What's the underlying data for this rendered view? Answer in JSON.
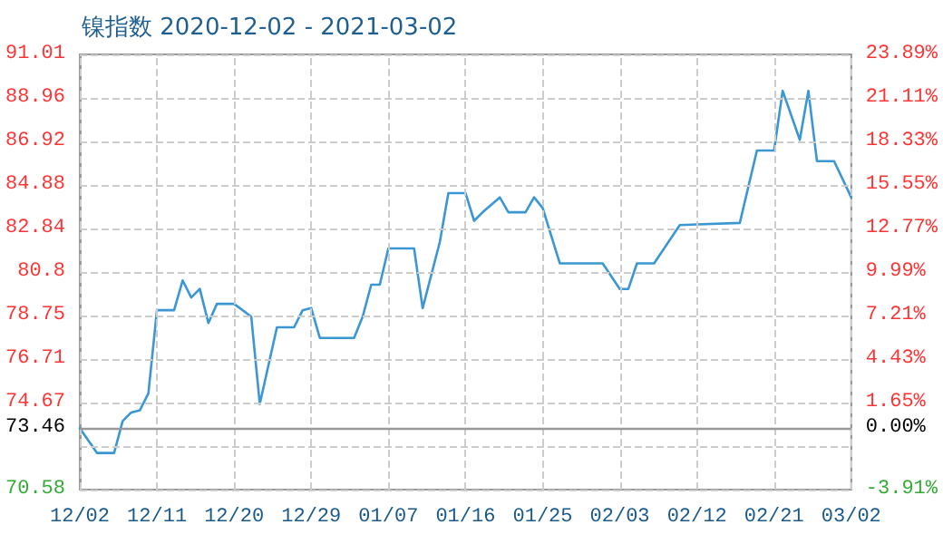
{
  "chart_data": {
    "type": "line",
    "title": "镍指数 2020-12-02 - 2021-03-02",
    "x": [
      "2020-12-02",
      "2020-12-04",
      "2020-12-06",
      "2020-12-07",
      "2020-12-08",
      "2020-12-09",
      "2020-12-10",
      "2020-12-11",
      "2020-12-13",
      "2020-12-14",
      "2020-12-15",
      "2020-12-16",
      "2020-12-17",
      "2020-12-18",
      "2020-12-20",
      "2020-12-22",
      "2020-12-23",
      "2020-12-25",
      "2020-12-27",
      "2020-12-28",
      "2020-12-29",
      "2020-12-30",
      "2021-01-03",
      "2021-01-04",
      "2021-01-05",
      "2021-01-06",
      "2021-01-07",
      "2021-01-10",
      "2021-01-11",
      "2021-01-13",
      "2021-01-14",
      "2021-01-16",
      "2021-01-17",
      "2021-01-18",
      "2021-01-20",
      "2021-01-21",
      "2021-01-23",
      "2021-01-24",
      "2021-01-25",
      "2021-01-27",
      "2021-02-01",
      "2021-02-03",
      "2021-02-04",
      "2021-02-05",
      "2021-02-07",
      "2021-02-10",
      "2021-02-17",
      "2021-02-19",
      "2021-02-21",
      "2021-02-22",
      "2021-02-24",
      "2021-02-25",
      "2021-02-26",
      "2021-02-28",
      "2021-03-02"
    ],
    "series": [
      {
        "color": "#3a97d4",
        "values": [
          73.46,
          72.3,
          72.3,
          73.8,
          74.2,
          74.3,
          75.1,
          79.0,
          79.0,
          80.4,
          79.6,
          80.0,
          78.4,
          79.3,
          79.3,
          78.7,
          74.6,
          78.2,
          78.2,
          79.0,
          79.1,
          77.7,
          77.7,
          78.7,
          80.2,
          80.2,
          81.9,
          81.9,
          79.1,
          82.2,
          84.5,
          84.5,
          83.2,
          83.6,
          84.3,
          83.6,
          83.6,
          84.3,
          83.8,
          81.2,
          81.2,
          80.0,
          80.0,
          81.2,
          81.2,
          83.0,
          83.1,
          86.5,
          86.5,
          89.3,
          87.0,
          89.3,
          86.0,
          86.0,
          84.3
        ]
      }
    ],
    "xlim": [
      "2020-12-02",
      "2021-03-02"
    ],
    "xticks": [
      {
        "value": "2020-12-02",
        "label": "12/02"
      },
      {
        "value": "2020-12-11",
        "label": "12/11"
      },
      {
        "value": "2020-12-20",
        "label": "12/20"
      },
      {
        "value": "2020-12-29",
        "label": "12/29"
      },
      {
        "value": "2021-01-07",
        "label": "01/07"
      },
      {
        "value": "2021-01-16",
        "label": "01/16"
      },
      {
        "value": "2021-01-25",
        "label": "01/25"
      },
      {
        "value": "2021-02-03",
        "label": "02/03"
      },
      {
        "value": "2021-02-12",
        "label": "02/12"
      },
      {
        "value": "2021-02-21",
        "label": "02/21"
      },
      {
        "value": "2021-03-02",
        "label": "03/02"
      }
    ],
    "ylim": [
      70.58,
      91.01
    ],
    "yticks": [
      70.58,
      {
        "value": 72.62,
        "label": null
      },
      73.46,
      74.67,
      76.71,
      78.75,
      {
        "value": 80.8,
        "label": "80.8"
      },
      82.84,
      84.88,
      86.92,
      88.96,
      91.01
    ],
    "y2lim": [
      -3.91,
      23.89
    ],
    "y2ticks": [
      {
        "value": -3.91,
        "label": "-3.91%"
      },
      {
        "value": 0,
        "label": "0.00%"
      },
      {
        "value": 1.65,
        "label": "1.65%"
      },
      {
        "value": 4.43,
        "label": "4.43%"
      },
      {
        "value": 7.21,
        "label": "7.21%"
      },
      {
        "value": 9.99,
        "label": "9.99%"
      },
      {
        "value": 12.77,
        "label": "12.77%"
      },
      {
        "value": 15.55,
        "label": "15.55%"
      },
      {
        "value": 18.33,
        "label": "18.33%"
      },
      {
        "value": 21.11,
        "label": "21.11%"
      },
      {
        "value": 23.89,
        "label": "23.89%"
      }
    ],
    "ref_lines": [
      {
        "axis": "y",
        "value": 73.46,
        "color": "#999999"
      }
    ],
    "grid": true,
    "marker": "none",
    "line_style": "solid"
  }
}
